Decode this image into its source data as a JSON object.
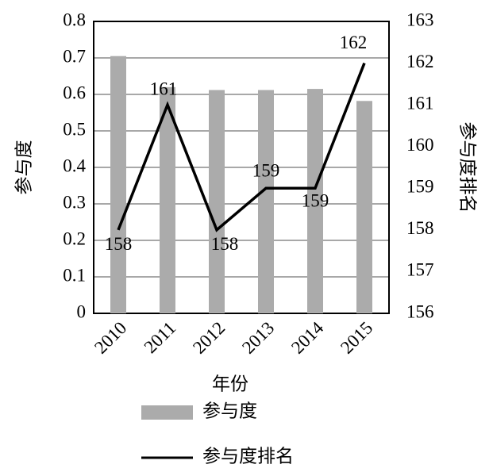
{
  "chart_data": {
    "type": "combo",
    "categories": [
      "2010",
      "2011",
      "2012",
      "2013",
      "2014",
      "2015"
    ],
    "series": [
      {
        "name": "参与度",
        "type": "bar",
        "color": "#ababab",
        "values": [
          0.705,
          0.62,
          0.612,
          0.612,
          0.615,
          0.582
        ]
      },
      {
        "name": "参与度排名",
        "type": "line",
        "axis": "y2",
        "color": "#000000",
        "values": [
          158,
          161,
          158,
          159,
          159,
          162
        ]
      }
    ],
    "xlabel": "年份",
    "ylabel": "参与度",
    "y2label": "参与度排名",
    "ylim": [
      0,
      0.8
    ],
    "yticks": [
      0,
      0.1,
      0.2,
      0.3,
      0.4,
      0.5,
      0.6,
      0.7,
      0.8
    ],
    "y2lim": [
      156,
      163
    ],
    "y2ticks": [
      156,
      157,
      158,
      159,
      160,
      161,
      162,
      163
    ],
    "grid": true,
    "legend": "bottom"
  }
}
